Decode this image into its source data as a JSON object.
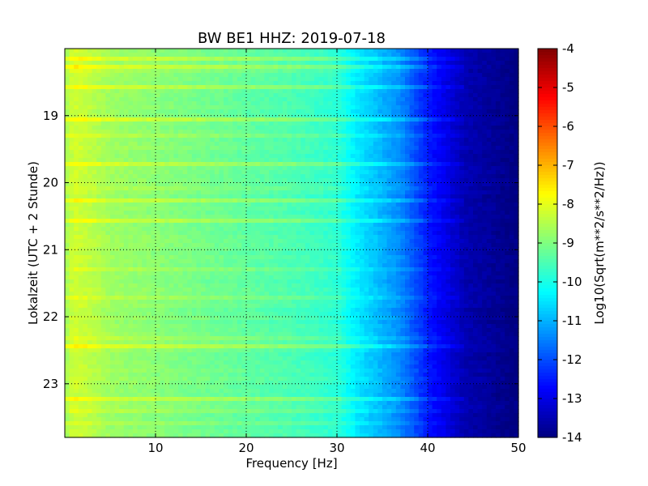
{
  "chart_data": {
    "type": "heatmap",
    "title": "BW BE1 HHZ: 2019-07-18",
    "xlabel": "Frequency [Hz]",
    "ylabel": "Lokalzeit (UTC + 2 Stunde)",
    "xlim": [
      0,
      50
    ],
    "ylim": [
      18.0,
      23.8
    ],
    "y_inverted": true,
    "x_ticks": [
      10,
      20,
      30,
      40,
      50
    ],
    "y_ticks": [
      19,
      20,
      21,
      22,
      23
    ],
    "grid": true,
    "colorbar": {
      "label": "Log10(Sqrt(m**2/s**2/Hz))",
      "range": [
        -14,
        -4
      ],
      "ticks": [
        -4,
        -5,
        -6,
        -7,
        -8,
        -9,
        -10,
        -11,
        -12,
        -13,
        -14
      ],
      "colormap": "jet"
    },
    "psd_profile": {
      "frequency_hz": [
        0,
        1,
        2,
        5,
        10,
        20,
        25,
        30,
        32,
        34,
        37,
        40,
        44,
        50
      ],
      "log10_amplitude": [
        -8.7,
        -8.2,
        -8.3,
        -8.7,
        -8.9,
        -9.3,
        -9.5,
        -9.8,
        -10.4,
        -10.8,
        -11.4,
        -12.5,
        -13.5,
        -14
      ]
    },
    "bright_bands_hour": [
      18.15,
      18.25,
      18.55,
      19.05,
      19.7,
      20.25,
      20.55,
      22.45,
      23.2
    ],
    "dim_bands_hour": [
      18.35,
      19.3,
      20.1,
      21.3,
      21.7,
      22.3,
      23.4,
      23.6
    ]
  }
}
